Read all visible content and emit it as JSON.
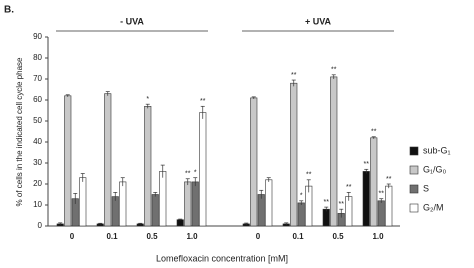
{
  "chart_data": {
    "type": "bar",
    "panel_label": "B.",
    "y_label": "% of cells in the indicated cell cycle phase",
    "x_label": "Lomefloxacin concentration [mM]",
    "groups": [
      {
        "label": "- UVA",
        "categories": [
          "0",
          "0.1",
          "0.5",
          "1.0"
        ]
      },
      {
        "label": "+ UVA",
        "categories": [
          "0",
          "0.1",
          "0.5",
          "1.0"
        ]
      }
    ],
    "series": [
      {
        "name": "sub-G₁",
        "color": "#111111",
        "values": [
          1,
          1,
          1,
          3,
          1,
          1,
          8,
          26
        ],
        "errors": [
          0.5,
          0.3,
          0.3,
          0.3,
          0.4,
          0.5,
          1,
          1
        ],
        "annotations": [
          null,
          null,
          null,
          null,
          null,
          null,
          "**",
          "**"
        ]
      },
      {
        "name": "G₁/G₀",
        "color": "#c8c8c8",
        "values": [
          62,
          63,
          57,
          21,
          61,
          68,
          71,
          42
        ],
        "errors": [
          0.5,
          1,
          1,
          1.5,
          0.5,
          1.5,
          1,
          0.5
        ],
        "annotations": [
          null,
          null,
          "*",
          "**",
          null,
          "**",
          "**",
          "**"
        ]
      },
      {
        "name": "S",
        "color": "#707070",
        "values": [
          13,
          14,
          15,
          21,
          15,
          11,
          6,
          12
        ],
        "errors": [
          2.5,
          2,
          1,
          2,
          2,
          1,
          2,
          1
        ],
        "annotations": [
          null,
          null,
          null,
          "*",
          null,
          "*",
          "**",
          "**"
        ]
      },
      {
        "name": "G₂/M",
        "color": "#ffffff",
        "values": [
          23,
          21,
          26,
          54,
          22,
          19,
          14,
          19
        ],
        "errors": [
          2,
          2,
          3,
          3,
          1,
          3,
          2,
          1
        ],
        "annotations": [
          null,
          null,
          null,
          "**",
          null,
          "**",
          "**",
          "**"
        ]
      }
    ],
    "ylim": [
      0,
      90
    ],
    "yticks": [
      0,
      10,
      20,
      30,
      40,
      50,
      60,
      70,
      80,
      90
    ]
  }
}
